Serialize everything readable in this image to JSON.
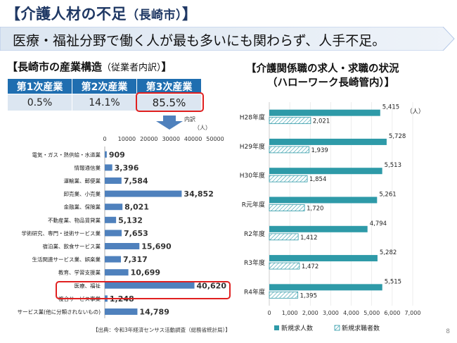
{
  "title": "【介護人材の不足",
  "title_sub": "（長崎市）",
  "title_end": "】",
  "banner": "医療・福祉分野で働く人が最も多いにも関わらず、人手不足。",
  "left_heading": "【長崎市の産業構造",
  "left_heading_small": "（従業者内訳）",
  "left_heading_end": "】",
  "industry_table": {
    "headers": [
      "第1次産業",
      "第2次産業",
      "第3次産業"
    ],
    "values": [
      "0.5%",
      "14.1%",
      "85.5%"
    ]
  },
  "breakdown_label": "内訳",
  "breakdown_unit": "（人）",
  "right_heading_1": "【介護関係職の求人・求職の状況",
  "right_heading_2": "（ハローワーク長崎管内）】",
  "right_unit": "（人）",
  "source": "【出典：令和3年経済センサス活動調査（総務省統計局）】",
  "page_number": "8",
  "colors": {
    "bar_blue": "#4f81bd",
    "teal": "#2e9aa8",
    "highlight_red": "#e02020",
    "banner": "#dce6f1"
  },
  "chart_data": [
    {
      "type": "bar",
      "orientation": "horizontal",
      "categories": [
        "電気・ガス・熱供給・水道業",
        "情報通信業",
        "運輸業、郵便業",
        "卸売業、小売業",
        "金融業、保険業",
        "不動産業、物品賃貸業",
        "学術研究、専門・技術サービス業",
        "宿泊業、飲食サービス業",
        "生活関連サービス業、娯楽業",
        "教育、学習支援業",
        "医療、福祉",
        "複合サービス事業",
        "サービス業(他に分類されないもの)"
      ],
      "values": [
        909,
        3396,
        7584,
        34852,
        8021,
        5132,
        7653,
        15690,
        7317,
        10699,
        40620,
        1248,
        14789
      ],
      "value_labels": [
        "909",
        "3,396",
        "7,584",
        "34,852",
        "8,021",
        "5,132",
        "7,653",
        "15,690",
        "7,317",
        "10,699",
        "40,620",
        "1,248",
        "14,789"
      ],
      "xticks": [
        "0",
        "10000",
        "20000",
        "30000",
        "40000",
        "50000"
      ],
      "xlim": [
        0,
        50000
      ]
    },
    {
      "type": "bar",
      "orientation": "horizontal",
      "categories": [
        "H28年度",
        "H29年度",
        "H30年度",
        "R元年度",
        "R2年度",
        "R3年度",
        "R4年度"
      ],
      "series": [
        {
          "name": "新規求人数",
          "values": [
            5415,
            5728,
            5513,
            5261,
            4794,
            5282,
            5515
          ],
          "labels": [
            "5,415",
            "5,728",
            "5,513",
            "5,261",
            "4,794",
            "5,282",
            "5,515"
          ]
        },
        {
          "name": "新規求職者数",
          "values": [
            2021,
            1939,
            1854,
            1720,
            1412,
            1472,
            1395
          ],
          "labels": [
            "2,021",
            "1,939",
            "1,854",
            "1,720",
            "1,412",
            "1,472",
            "1,395"
          ]
        }
      ],
      "xticks": [
        "0",
        "1,000",
        "2,000",
        "3,000",
        "4,000",
        "5,000",
        "6,000",
        "7,000"
      ],
      "xlim": [
        0,
        7000
      ],
      "legend": "bottom"
    }
  ]
}
